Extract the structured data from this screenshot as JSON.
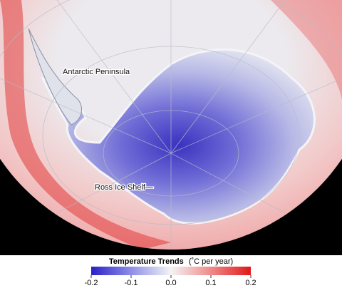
{
  "map": {
    "labels": [
      "Antarctic Peninsula",
      "Ross Ice Shelf—"
    ]
  },
  "legend": {
    "title": "Temperature Trends",
    "unit": "(˚C per year)",
    "ticks": [
      -0.2,
      -0.1,
      {
        "value": 0,
        "label": "0.0"
      },
      0.1,
      0.2
    ],
    "colors": [
      "#2a20c8",
      "#8e8ee8",
      "#f4f4f4",
      "#f08a8a",
      "#e01818"
    ]
  }
}
